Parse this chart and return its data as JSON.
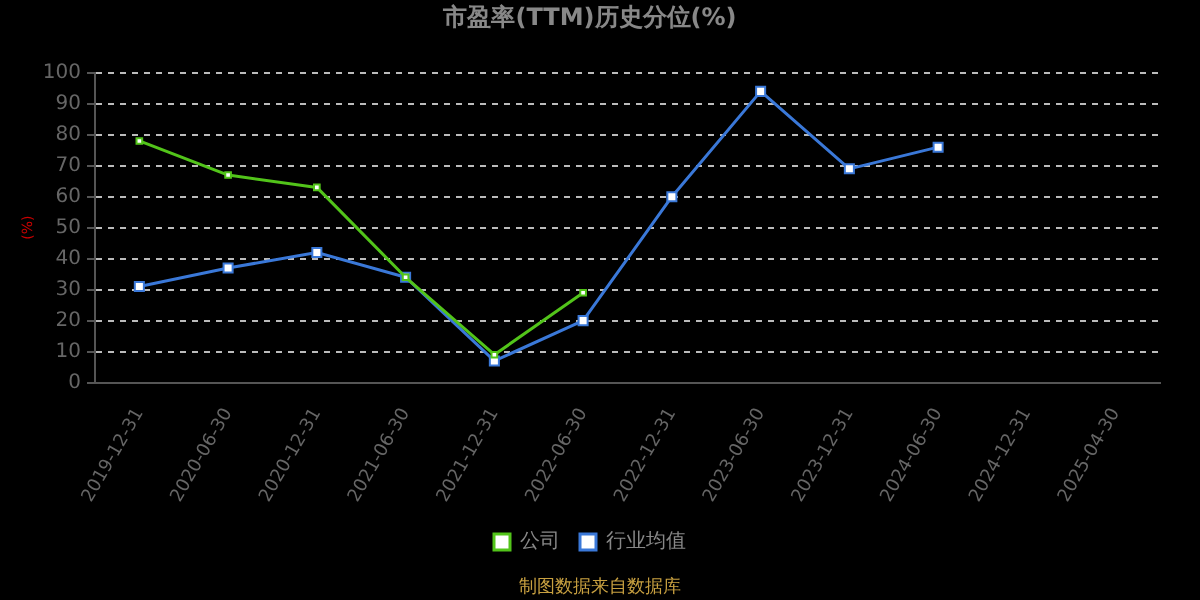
{
  "chart_data": {
    "type": "line",
    "title": "市盈率(TTM)历史分位(%)",
    "ylabel": "(%)",
    "categories": [
      "2019-12-31",
      "2020-06-30",
      "2020-12-31",
      "2021-06-30",
      "2021-12-31",
      "2022-06-30",
      "2022-12-31",
      "2023-06-30",
      "2023-12-31",
      "2024-06-30",
      "2024-12-31",
      "2025-04-30"
    ],
    "series": [
      {
        "name": "公司",
        "color": "#52c41a",
        "values": [
          78,
          67,
          63,
          34,
          9,
          29,
          null,
          null,
          null,
          null,
          null,
          null
        ]
      },
      {
        "name": "行业均值",
        "color": "#3a78d8",
        "values": [
          31,
          37,
          42,
          34,
          7,
          20,
          60,
          94,
          69,
          76,
          null,
          null
        ]
      }
    ],
    "ylim": [
      0,
      100
    ],
    "yticks": [
      0,
      10,
      20,
      30,
      40,
      50,
      60,
      70,
      80,
      90,
      100
    ],
    "grid": "y",
    "legend": "bottom",
    "marker": "square",
    "line_style": "solid",
    "annotations": [
      "制图数据来自数据库"
    ]
  }
}
